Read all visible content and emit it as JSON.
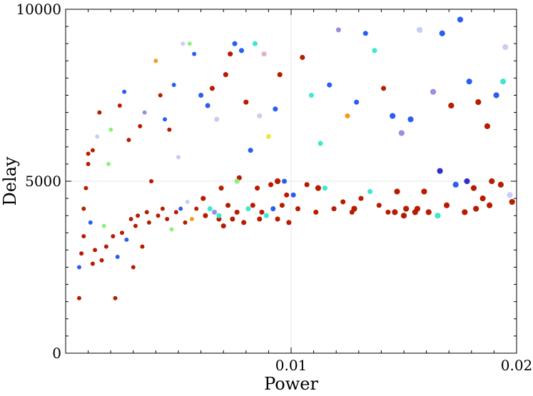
{
  "chart_data": {
    "type": "scatter",
    "xlabel": "Power",
    "ylabel": "Delay",
    "xlim": [
      0,
      0.02
    ],
    "ylim": [
      0,
      10000
    ],
    "x_ticks": [
      0.01,
      0.02
    ],
    "x_tick_labels": [
      "0.01",
      "0.02"
    ],
    "y_ticks": [
      0,
      5000,
      10000
    ],
    "y_tick_labels": [
      "0",
      "5000",
      "10000"
    ],
    "grid": true,
    "colors": {
      "red": "#b81c00",
      "orange": "#f29a1a",
      "yellow": "#e8e84a",
      "green": "#8ef07a",
      "cyan": "#3ee8d0",
      "blue": "#2a5ef0",
      "darkblue": "#3030c8",
      "lightblue": "#c8cdf2",
      "lavender": "#9890e0",
      "pink": "#e0b4b4"
    },
    "points": [
      [
        0.0006,
        1600,
        "red",
        4
      ],
      [
        0.0006,
        2500,
        "blue",
        4
      ],
      [
        0.0007,
        2900,
        "red",
        4
      ],
      [
        0.0008,
        3400,
        "red",
        4
      ],
      [
        0.0008,
        4200,
        "red",
        4
      ],
      [
        0.0009,
        4800,
        "red",
        4
      ],
      [
        0.001,
        5500,
        "red",
        4
      ],
      [
        0.001,
        5800,
        "red",
        4
      ],
      [
        0.0011,
        3800,
        "blue",
        4
      ],
      [
        0.0012,
        5900,
        "red",
        4
      ],
      [
        0.0012,
        2600,
        "red",
        4
      ],
      [
        0.0013,
        3000,
        "red",
        4
      ],
      [
        0.0014,
        6300,
        "lightblue",
        4
      ],
      [
        0.0015,
        7000,
        "red",
        4
      ],
      [
        0.0016,
        2700,
        "red",
        4
      ],
      [
        0.0017,
        3700,
        "green",
        4
      ],
      [
        0.0018,
        3100,
        "red",
        4
      ],
      [
        0.0019,
        5500,
        "green",
        4
      ],
      [
        0.002,
        6500,
        "green",
        4
      ],
      [
        0.0021,
        3400,
        "red",
        4
      ],
      [
        0.0022,
        1600,
        "red",
        4
      ],
      [
        0.0023,
        2800,
        "blue",
        4
      ],
      [
        0.0024,
        7200,
        "red",
        4
      ],
      [
        0.0025,
        3500,
        "red",
        4
      ],
      [
        0.0026,
        7600,
        "blue",
        4
      ],
      [
        0.0027,
        3300,
        "blue",
        4
      ],
      [
        0.0028,
        6200,
        "red",
        4
      ],
      [
        0.0029,
        3900,
        "red",
        4
      ],
      [
        0.003,
        2500,
        "red",
        4
      ],
      [
        0.0031,
        3700,
        "red",
        4
      ],
      [
        0.0032,
        4000,
        "red",
        4
      ],
      [
        0.0033,
        6600,
        "red",
        4
      ],
      [
        0.0034,
        3100,
        "red",
        4
      ],
      [
        0.0035,
        7000,
        "lavender",
        4
      ],
      [
        0.0036,
        4100,
        "red",
        4
      ],
      [
        0.0037,
        3800,
        "red",
        4
      ],
      [
        0.0038,
        5000,
        "red",
        4
      ],
      [
        0.004,
        8500,
        "orange",
        4
      ],
      [
        0.0041,
        4000,
        "red",
        4
      ],
      [
        0.0042,
        7500,
        "red",
        4
      ],
      [
        0.0043,
        4200,
        "red",
        4
      ],
      [
        0.0044,
        6800,
        "blue",
        4
      ],
      [
        0.0045,
        3900,
        "red",
        4
      ],
      [
        0.0046,
        6500,
        "red",
        4
      ],
      [
        0.0047,
        3600,
        "green",
        4
      ],
      [
        0.0048,
        7800,
        "blue",
        4
      ],
      [
        0.0049,
        4100,
        "red",
        4
      ],
      [
        0.005,
        5700,
        "lightblue",
        4
      ],
      [
        0.0051,
        4200,
        "blue",
        4
      ],
      [
        0.0052,
        9000,
        "lightblue",
        4
      ],
      [
        0.0053,
        3800,
        "red",
        4
      ],
      [
        0.0054,
        4400,
        "lightblue",
        4
      ],
      [
        0.0055,
        9000,
        "green",
        4
      ],
      [
        0.0056,
        3900,
        "orange",
        4
      ],
      [
        0.0057,
        8700,
        "blue",
        4
      ],
      [
        0.0058,
        4200,
        "red",
        4
      ],
      [
        0.006,
        7500,
        "blue",
        5
      ],
      [
        0.0061,
        4500,
        "red",
        5
      ],
      [
        0.0062,
        4000,
        "red",
        5
      ],
      [
        0.0063,
        7200,
        "blue",
        5
      ],
      [
        0.0064,
        4200,
        "cyan",
        5
      ],
      [
        0.0065,
        7700,
        "red",
        5
      ],
      [
        0.0066,
        4100,
        "lavender",
        5
      ],
      [
        0.0067,
        6800,
        "lightblue",
        5
      ],
      [
        0.0068,
        3900,
        "red",
        5
      ],
      [
        0.0069,
        4800,
        "red",
        5
      ],
      [
        0.007,
        3700,
        "red",
        5
      ],
      [
        0.0071,
        8100,
        "red",
        5
      ],
      [
        0.0072,
        4300,
        "red",
        5
      ],
      [
        0.0073,
        8700,
        "red",
        5
      ],
      [
        0.0074,
        3900,
        "red",
        5
      ],
      [
        0.0075,
        9000,
        "blue",
        5
      ],
      [
        0.0076,
        4100,
        "red",
        5
      ],
      [
        0.0077,
        5100,
        "red",
        5
      ],
      [
        0.0078,
        8800,
        "blue",
        5
      ],
      [
        0.0079,
        3800,
        "red",
        5
      ],
      [
        0.008,
        7300,
        "red",
        5
      ],
      [
        0.0081,
        4200,
        "cyan",
        5
      ],
      [
        0.0082,
        5900,
        "blue",
        5
      ],
      [
        0.0083,
        4300,
        "red",
        5
      ],
      [
        0.0084,
        9000,
        "cyan",
        5
      ],
      [
        0.0085,
        4800,
        "red",
        5
      ],
      [
        0.0086,
        6900,
        "lightblue",
        5
      ],
      [
        0.0087,
        4100,
        "red",
        5
      ],
      [
        0.0088,
        8700,
        "pink",
        5
      ],
      [
        0.0089,
        4000,
        "cyan",
        5
      ],
      [
        0.009,
        6300,
        "yellow",
        5
      ],
      [
        0.0091,
        4900,
        "red",
        5
      ],
      [
        0.0092,
        4200,
        "blue",
        5
      ],
      [
        0.0093,
        7100,
        "blue",
        5
      ],
      [
        0.0094,
        3900,
        "red",
        5
      ],
      [
        0.0095,
        8100,
        "red",
        5
      ],
      [
        0.0096,
        4300,
        "red",
        5
      ],
      [
        0.0097,
        5000,
        "blue",
        5
      ],
      [
        0.0098,
        4600,
        "red",
        5
      ],
      [
        0.0099,
        3800,
        "red",
        5
      ],
      [
        0.0101,
        4600,
        "blue",
        5
      ],
      [
        0.0103,
        4200,
        "red",
        5
      ],
      [
        0.0105,
        8600,
        "red",
        5
      ],
      [
        0.0107,
        4900,
        "red",
        5
      ],
      [
        0.0109,
        7500,
        "cyan",
        5
      ],
      [
        0.0111,
        4100,
        "red",
        5
      ],
      [
        0.0113,
        6100,
        "cyan",
        5
      ],
      [
        0.0115,
        4800,
        "cyan",
        5
      ],
      [
        0.0117,
        7800,
        "blue",
        5
      ],
      [
        0.0119,
        4200,
        "red",
        5
      ],
      [
        0.0121,
        9400,
        "lavender",
        5
      ],
      [
        0.0123,
        4400,
        "red",
        5
      ],
      [
        0.0125,
        6900,
        "orange",
        5
      ],
      [
        0.0127,
        4100,
        "red",
        5
      ],
      [
        0.0129,
        7300,
        "blue",
        5
      ],
      [
        0.0131,
        4500,
        "red",
        5
      ],
      [
        0.0133,
        9300,
        "blue",
        5
      ],
      [
        0.0135,
        4700,
        "cyan",
        5
      ],
      [
        0.0137,
        8800,
        "cyan",
        5
      ],
      [
        0.0139,
        4300,
        "red",
        5
      ],
      [
        0.0141,
        7700,
        "red",
        5
      ],
      [
        0.0143,
        4100,
        "red",
        5
      ],
      [
        0.0145,
        6900,
        "blue",
        6
      ],
      [
        0.0147,
        4700,
        "red",
        6
      ],
      [
        0.0149,
        6400,
        "lavender",
        6
      ],
      [
        0.0151,
        4200,
        "red",
        6
      ],
      [
        0.0153,
        6800,
        "blue",
        6
      ],
      [
        0.0155,
        4100,
        "red",
        6
      ],
      [
        0.0157,
        9400,
        "lightblue",
        6
      ],
      [
        0.0159,
        4700,
        "red",
        6
      ],
      [
        0.0161,
        4100,
        "red",
        6
      ],
      [
        0.0163,
        7600,
        "lavender",
        6
      ],
      [
        0.0165,
        4000,
        "cyan",
        6
      ],
      [
        0.0167,
        9300,
        "blue",
        6
      ],
      [
        0.0169,
        4300,
        "red",
        6
      ],
      [
        0.0171,
        7200,
        "red",
        6
      ],
      [
        0.0173,
        4900,
        "blue",
        6
      ],
      [
        0.0175,
        9700,
        "blue",
        6
      ],
      [
        0.0177,
        4100,
        "red",
        6
      ],
      [
        0.0179,
        7900,
        "blue",
        6
      ],
      [
        0.0181,
        4800,
        "red",
        6
      ],
      [
        0.0183,
        7300,
        "red",
        6
      ],
      [
        0.0185,
        4500,
        "red",
        6
      ],
      [
        0.0187,
        6600,
        "red",
        6
      ],
      [
        0.0189,
        5000,
        "red",
        6
      ],
      [
        0.0191,
        7500,
        "blue",
        6
      ],
      [
        0.0193,
        4900,
        "red",
        6
      ],
      [
        0.0195,
        8900,
        "lightblue",
        6
      ],
      [
        0.0197,
        4600,
        "lightblue",
        6
      ],
      [
        0.0198,
        4400,
        "red",
        6
      ],
      [
        0.0178,
        5000,
        "darkblue",
        6
      ],
      [
        0.0166,
        5300,
        "darkblue",
        6
      ],
      [
        0.0194,
        7900,
        "cyan",
        6
      ],
      [
        0.0188,
        4300,
        "red",
        6
      ],
      [
        0.0182,
        4200,
        "red",
        6
      ],
      [
        0.015,
        4000,
        "red",
        6
      ],
      [
        0.0156,
        4200,
        "red",
        6
      ],
      [
        0.0146,
        4100,
        "red",
        6
      ],
      [
        0.0128,
        4200,
        "red",
        6
      ],
      [
        0.0112,
        4800,
        "red",
        6
      ],
      [
        0.0094,
        5000,
        "red",
        6
      ],
      [
        0.0086,
        3900,
        "red",
        5
      ],
      [
        0.0076,
        5000,
        "green",
        5
      ],
      [
        0.0068,
        4000,
        "cyan",
        5
      ]
    ]
  }
}
